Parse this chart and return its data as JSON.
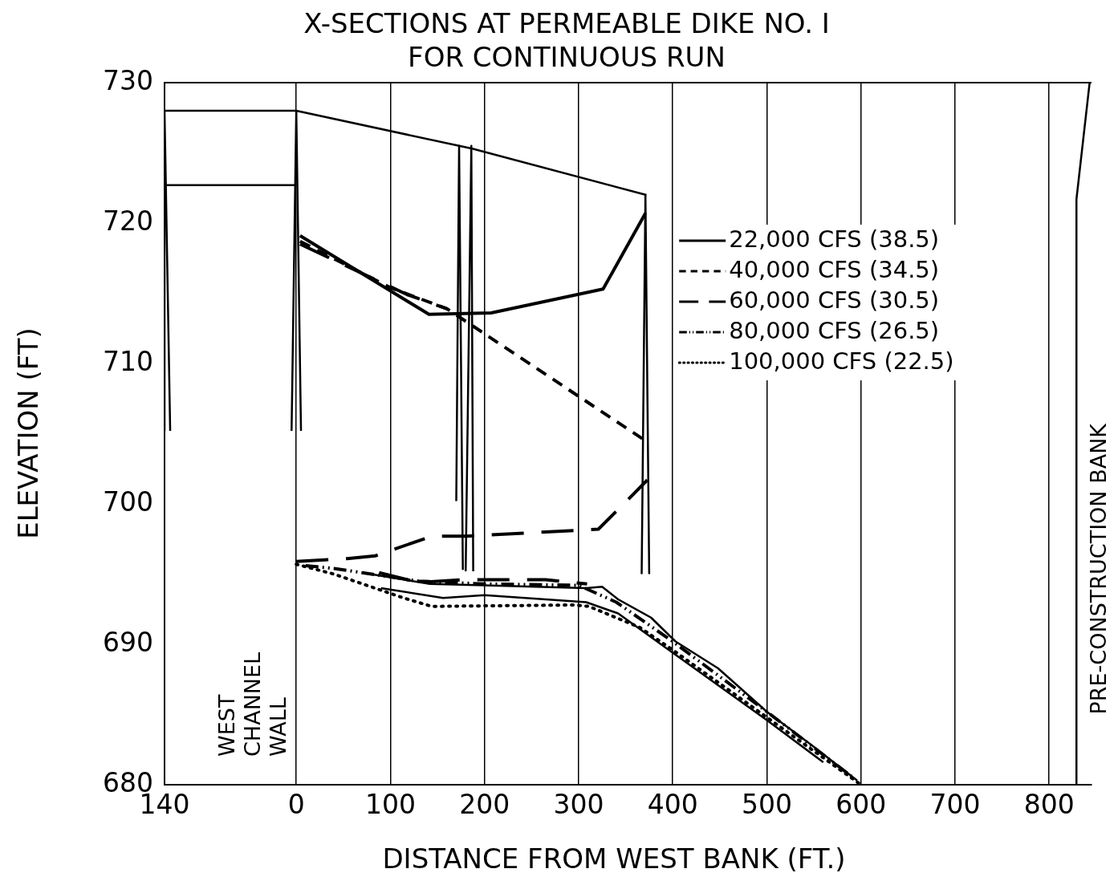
{
  "chart_data": {
    "type": "line",
    "title": "X-SECTIONS AT PERMEABLE DIKE NO. I",
    "subtitle": "FOR CONTINUOUS RUN",
    "xlabel": "DISTANCE FROM WEST BANK (FT.)",
    "ylabel": "ELEVATION (FT)",
    "xlim": [
      -140,
      845
    ],
    "xticks": [
      {
        "value": -140,
        "label": "140"
      },
      0,
      100,
      200,
      300,
      400,
      500,
      600,
      700,
      800
    ],
    "ylim": [
      680,
      730
    ],
    "yticks": [
      680,
      690,
      700,
      710,
      720,
      730
    ],
    "grid": "x",
    "legend": "top right",
    "series": [
      {
        "color": "#000000",
        "line_style": "solid",
        "x": [
          -140,
          0,
          187,
          372
        ],
        "values": [
          728,
          728,
          725.3,
          722
        ]
      },
      {
        "color": "#000000",
        "line_style": "solid",
        "x": [
          -140,
          0
        ],
        "values": [
          722.7,
          722.7
        ]
      },
      {
        "color": "#000000",
        "line_style": "solid",
        "x": [
          -140,
          -140,
          -134
        ],
        "values": [
          705.2,
          728,
          705.2
        ]
      },
      {
        "color": "#000000",
        "line_style": "solid",
        "x": [
          -5,
          0,
          5
        ],
        "values": [
          705.2,
          728,
          705.2
        ]
      },
      {
        "color": "#000000",
        "line_style": "solid",
        "x": [
          170,
          173,
          177
        ],
        "values": [
          700.2,
          725.5,
          695.3
        ]
      },
      {
        "color": "#000000",
        "line_style": "solid",
        "x": [
          180,
          186,
          188
        ],
        "values": [
          695.2,
          725.5,
          695.2
        ]
      },
      {
        "color": "#000000",
        "line_style": "solid",
        "x": [
          367,
          371,
          375
        ],
        "values": [
          695,
          722,
          695
        ]
      },
      {
        "color": "#000000",
        "line_style": "solid",
        "x": [
          829,
          829,
          843
        ],
        "values": [
          680,
          721.7,
          730
        ]
      },
      {
        "color": "#000000",
        "line_style": "solid",
        "x": [
          70,
          142,
          200,
          308,
          325,
          342,
          377,
          403,
          448,
          500,
          546,
          596
        ],
        "values": [
          695.1,
          694.3,
          694.2,
          694.0,
          694.1,
          693.2,
          691.9,
          690.2,
          688.3,
          685.2,
          682.9,
          680.3
        ]
      },
      {
        "color": "#000000",
        "line_style": "solid",
        "x": [
          90,
          156,
          200,
          308,
          342,
          400,
          500,
          560
        ],
        "values": [
          694.0,
          693.3,
          693.5,
          693.0,
          692.2,
          689.4,
          684.6,
          681.6
        ]
      },
      {
        "name": "22,000 CFS (38.5)",
        "color": "#000000",
        "line_style": "solid",
        "x": [
          4,
          141,
          207,
          326,
          371
        ],
        "values": [
          719.1,
          713.5,
          713.6,
          715.3,
          720.7
        ]
      },
      {
        "name": "40,000 CFS (34.5)",
        "color": "#000000",
        "line_style": "dashed",
        "x": [
          4,
          100,
          160,
          371
        ],
        "values": [
          718.7,
          715.4,
          713.9,
          704.5
        ]
      },
      {
        "name": "60,000 CFS (30.5)",
        "color": "#000000",
        "line_style": "longdash",
        "x": [
          4,
          118,
          160,
          null,
          0,
          54,
          84,
          144,
          181,
          321,
          348,
          373,
          null,
          88,
          130,
          176,
          217,
          265,
          309
        ],
        "values": [
          718.5,
          714.9,
          713.9,
          null,
          695.9,
          696.1,
          696.3,
          697.7,
          697.7,
          698.2,
          700,
          701.7,
          null,
          695.1,
          694.4,
          694.6,
          694.6,
          694.6,
          694.3
        ]
      },
      {
        "name": "80,000 CFS (26.5)",
        "color": "#000000",
        "line_style": "dashdot",
        "x": [
          10,
          40,
          70,
          130,
          200,
          300,
          340,
          400,
          500,
          590
        ],
        "values": [
          695.6,
          695.4,
          695.1,
          694.5,
          694.3,
          694.2,
          693.0,
          690.2,
          685.2,
          680.6
        ]
      },
      {
        "name": "100,000 CFS (22.5)",
        "color": "#000000",
        "line_style": "dotted",
        "x": [
          0,
          40,
          114,
          144,
          295,
          311,
          365,
          400,
          500,
          600
        ],
        "values": [
          695.7,
          695.0,
          693.3,
          692.7,
          692.8,
          692.7,
          691.2,
          689.6,
          684.8,
          680
        ]
      }
    ],
    "annotations": [
      "WEST\nCHANNEL\nWALL",
      "PRE-CONSTRUCTION BANK"
    ]
  }
}
